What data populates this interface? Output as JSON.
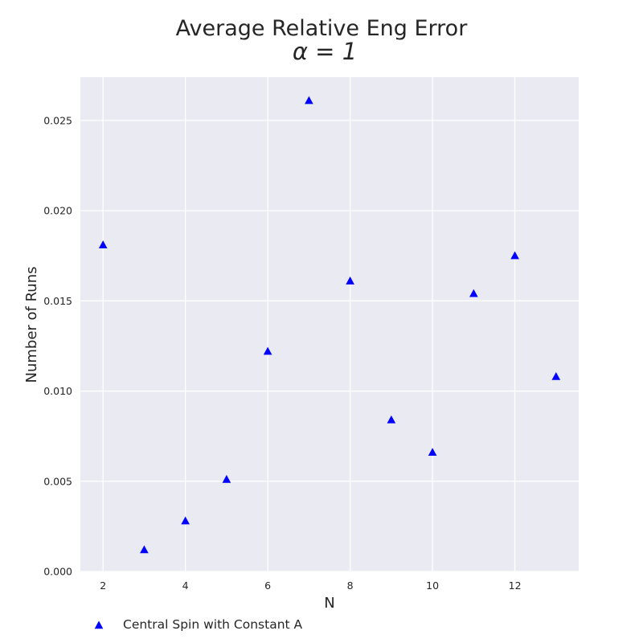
{
  "chart_data": {
    "type": "scatter",
    "title": "Average Relative Eng Error",
    "subtitle": "α = 1",
    "xlabel": "N",
    "ylabel": "Number of Runs",
    "xlim": [
      1.45,
      13.55
    ],
    "ylim": [
      0.0,
      0.0274
    ],
    "xticks": [
      2,
      4,
      6,
      8,
      10,
      12
    ],
    "xtick_labels": [
      "2",
      "4",
      "6",
      "8",
      "10",
      "12"
    ],
    "yticks": [
      0.0,
      0.005,
      0.01,
      0.015,
      0.02,
      0.025
    ],
    "ytick_labels": [
      "0.000",
      "0.005",
      "0.010",
      "0.015",
      "0.020",
      "0.025"
    ],
    "grid": true,
    "background": "#eaeaf2",
    "legend_position": "bottom-left",
    "series": [
      {
        "name": "Central Spin with Constant A",
        "marker": "triangle-up",
        "color": "#0000ff",
        "x": [
          2,
          3,
          4,
          5,
          6,
          7,
          8,
          9,
          10,
          11,
          12,
          13
        ],
        "y": [
          0.0181,
          0.0012,
          0.0028,
          0.0051,
          0.0122,
          0.0261,
          0.0161,
          0.0084,
          0.0066,
          0.0154,
          0.0175,
          0.0108
        ]
      }
    ]
  }
}
